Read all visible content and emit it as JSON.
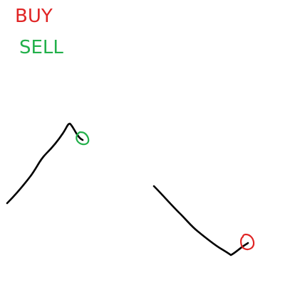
{
  "legend": {
    "buy": {
      "label": "BUY",
      "color": "#e02424"
    },
    "sell": {
      "label": "SELL",
      "color": "#22b04a"
    }
  },
  "strokes": {
    "line_color": "#000000"
  }
}
